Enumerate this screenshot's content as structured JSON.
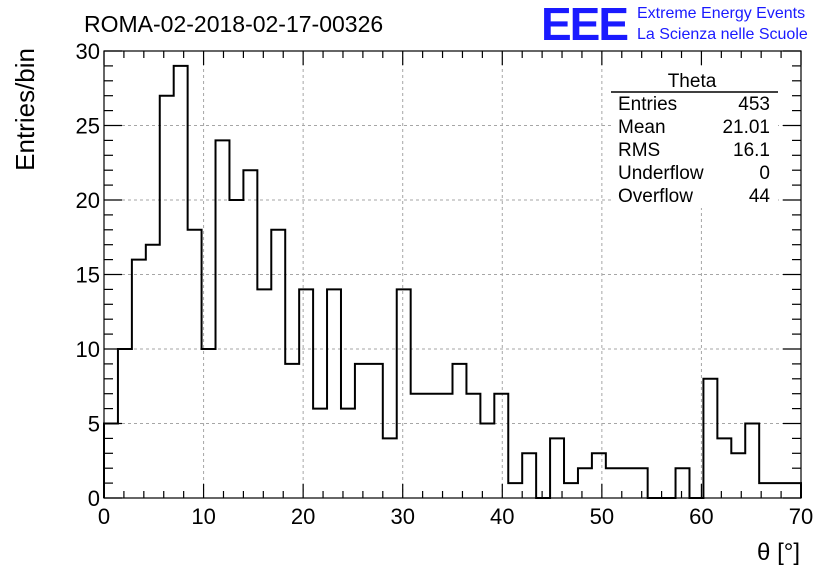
{
  "title": "ROMA-02-2018-02-17-00326",
  "logo": {
    "letters": "EEE",
    "line1": "Extreme Energy Events",
    "line2": "La Scienza nelle Scuole",
    "color": "#1a1aff"
  },
  "chart_data": {
    "type": "bar",
    "style": "step-histogram",
    "xlabel": "θ [°]",
    "ylabel": "Entries/bin",
    "xlim": [
      0,
      70
    ],
    "ylim": [
      0,
      30
    ],
    "xticks": [
      0,
      10,
      20,
      30,
      40,
      50,
      60,
      70
    ],
    "yticks": [
      0,
      5,
      10,
      15,
      20,
      25,
      30
    ],
    "grid": true,
    "bin_width": 1.4,
    "bin_edges_start": 0,
    "values": [
      5,
      10,
      16,
      17,
      27,
      29,
      18,
      10,
      24,
      20,
      22,
      14,
      18,
      9,
      14,
      6,
      14,
      6,
      9,
      9,
      4,
      14,
      7,
      7,
      7,
      9,
      7,
      5,
      7,
      1,
      3,
      0,
      4,
      1,
      2,
      3,
      2,
      2,
      2,
      0,
      0,
      2,
      0,
      8,
      4,
      3,
      5,
      1,
      1,
      1
    ]
  },
  "stats": {
    "title": "Theta",
    "rows": [
      {
        "label": "Entries",
        "value": "453"
      },
      {
        "label": "Mean",
        "value": "21.01"
      },
      {
        "label": "RMS",
        "value": "16.1"
      },
      {
        "label": "Underflow",
        "value": "0"
      },
      {
        "label": "Overflow",
        "value": "44"
      }
    ]
  }
}
